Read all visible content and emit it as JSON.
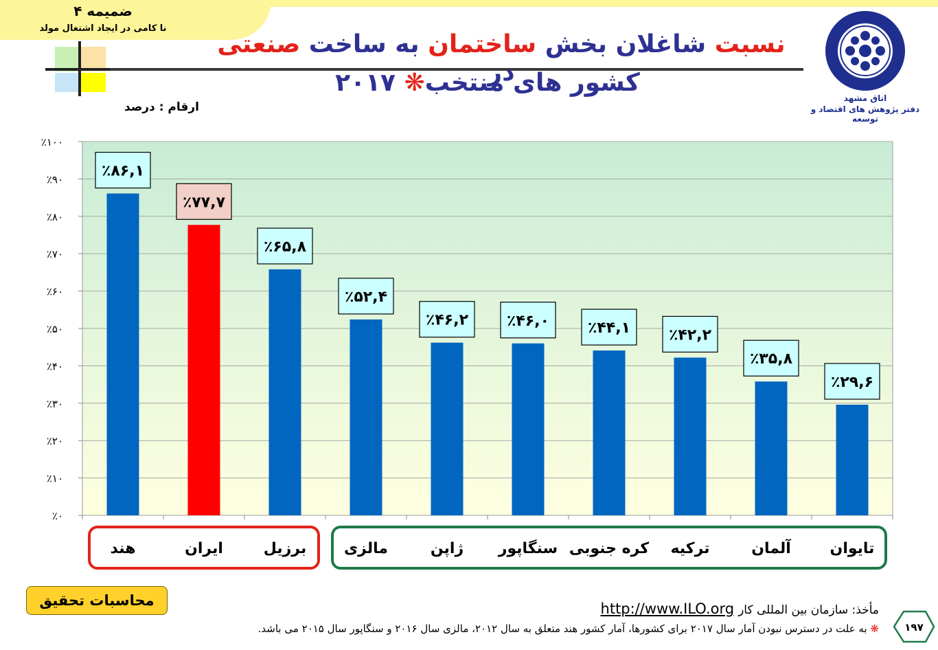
{
  "header": {
    "annex_title": "ضمیمه ۴",
    "annex_subtitle": "نا کامی در ایجاد اشتغال مولد",
    "title_line1_parts": [
      {
        "text": "نسبت ",
        "color": "red"
      },
      {
        "text": "شاغلان بخش ",
        "color": "blue"
      },
      {
        "text": "ساختمان",
        "color": "red"
      },
      {
        "text": " به ساخت ",
        "color": "blue"
      },
      {
        "text": "صنعتی",
        "color": "red"
      },
      {
        "text": " در",
        "color": "blue"
      }
    ],
    "title_line2_main": "کشور های منتخب",
    "title_line2_star": "❋",
    "title_line2_year": " ۲۰۱۷",
    "unit_label": "ارقام : درصد",
    "org_name": "اتاق مشهد",
    "org_dept": "دفتر پژوهش های اقتصاد و توسعه"
  },
  "colors": {
    "bar_blue": "#0066c0",
    "bar_red": "#ff0000",
    "title_blue": "#2e3192",
    "title_red": "#e2231a",
    "label_box_fill": "#ccffff",
    "highlight_box_fill": "#f2d0c7",
    "group1_border": "#e2231a",
    "group2_border": "#1f7a4a"
  },
  "chart_data": {
    "type": "bar",
    "categories": [
      "هند",
      "ایران",
      "برزیل",
      "مالزی",
      "ژاپن",
      "سنگاپور",
      "کره جنوبی",
      "ترکیه",
      "آلمان",
      "تایوان"
    ],
    "values": [
      86.1,
      77.7,
      65.8,
      52.4,
      46.2,
      46.0,
      44.1,
      42.2,
      35.8,
      29.6
    ],
    "data_labels": [
      "٪۸۶,۱",
      "٪۷۷,۷",
      "٪۶۵,۸",
      "٪۵۲,۴",
      "٪۴۶,۲",
      "٪۴۶,۰",
      "٪۴۴,۱",
      "٪۴۲,۲",
      "٪۳۵,۸",
      "٪۲۹,۶"
    ],
    "highlight_index": 1,
    "y_ticks": [
      "٪۰",
      "٪۱۰",
      "٪۲۰",
      "٪۳۰",
      "٪۴۰",
      "٪۵۰",
      "٪۶۰",
      "٪۷۰",
      "٪۸۰",
      "٪۹۰",
      "٪۱۰۰"
    ],
    "ylim": [
      0,
      100
    ],
    "grid": true,
    "groups": [
      {
        "from": 0,
        "to": 2,
        "color": "red"
      },
      {
        "from": 3,
        "to": 9,
        "color": "green"
      }
    ]
  },
  "footer": {
    "calc_label": "محاسبات تحقیق",
    "source_label": "مأخذ: سازمان بین المللی کار",
    "source_url": "http://www.ILO.org",
    "footnote_star": "❋",
    "footnote_text": " به علت در دسترس نبودن آمار سال ۲۰۱۷ برای کشورها، آمار کشور هند متعلق به سال ۲۰۱۲، مالزی سال ۲۰۱۶ و سنگاپور سال ۲۰۱۵ می باشد.",
    "page_number": "۱۹۷"
  }
}
